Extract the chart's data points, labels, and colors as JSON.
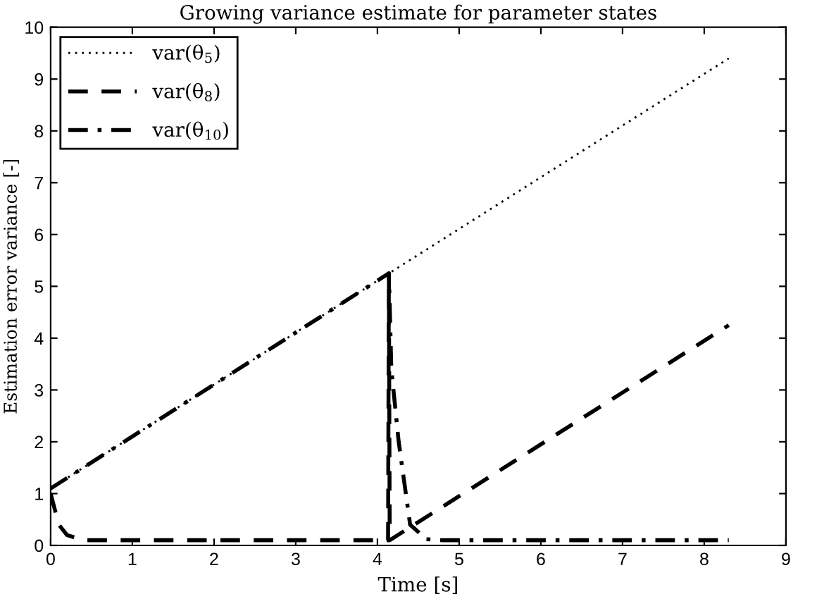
{
  "chart_data": {
    "type": "line",
    "title": "Growing variance estimate for parameter states",
    "xlabel": "Time [s]",
    "ylabel": "Estimation error variance [-]",
    "xlim": [
      0,
      9
    ],
    "xticks": [
      0,
      1,
      2,
      3,
      4,
      5,
      6,
      7,
      8,
      9
    ],
    "ylim": [
      0,
      10
    ],
    "yticks": [
      0,
      1,
      2,
      3,
      4,
      5,
      6,
      7,
      8,
      9,
      10
    ],
    "grid": false,
    "legend": "top left",
    "marker": "none",
    "series": [
      {
        "name": "var(θ$_{5}$)",
        "color": "#000000",
        "line_style": "dotted",
        "x": [
          0,
          4.14,
          8.3
        ],
        "values": [
          1.1,
          5.25,
          9.4
        ]
      },
      {
        "name": "var(θ$_{8}$)",
        "color": "#000000",
        "line_style": "dashed",
        "x": [
          0,
          0.1,
          0.2,
          0.4,
          4.13,
          4.14,
          4.15,
          8.3
        ],
        "values": [
          1.0,
          0.4,
          0.2,
          0.1,
          0.1,
          5.25,
          0.1,
          4.25
        ]
      },
      {
        "name": "var(θ$_{10}$)",
        "color": "#000000",
        "line_style": "dashdot",
        "x": [
          0,
          4.14,
          4.17,
          4.26,
          4.4,
          4.6,
          4.8,
          8.3
        ],
        "values": [
          1.1,
          5.25,
          3.4,
          2.0,
          0.4,
          0.12,
          0.1,
          0.1
        ]
      }
    ]
  }
}
